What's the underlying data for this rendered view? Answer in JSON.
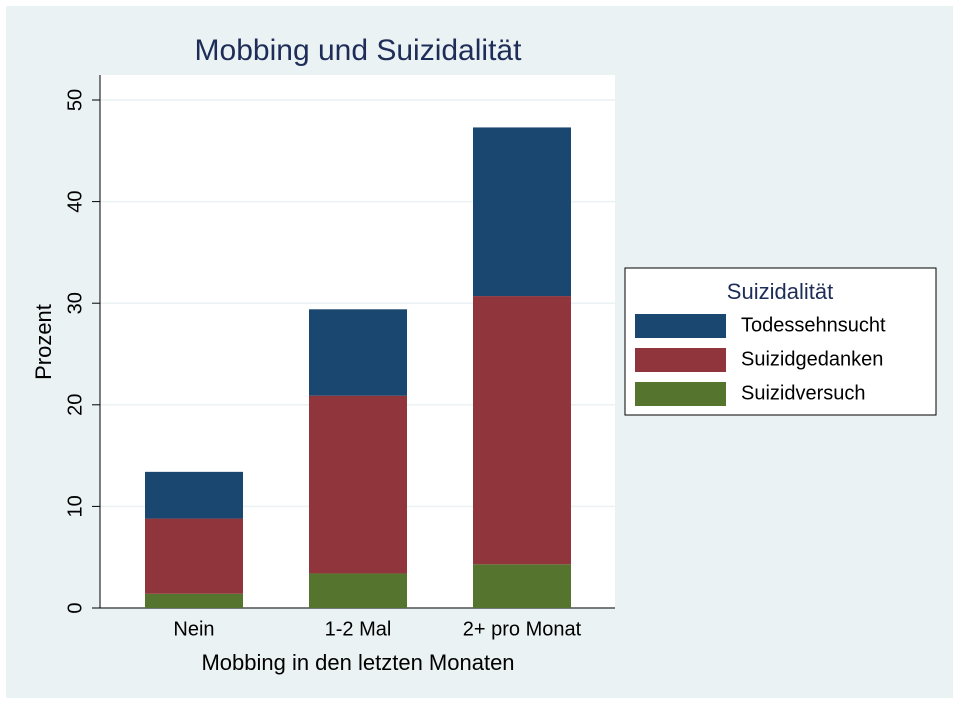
{
  "chart_data": {
    "type": "stacked_bar",
    "title": "Mobbing und Suizidalität",
    "xlabel": "Mobbing in den letzten Monaten",
    "ylabel": "Prozent",
    "categories": [
      "Nein",
      "1-2 Mal",
      "2+ pro Monat"
    ],
    "series": [
      {
        "name": "Todessehnsucht",
        "color": "#1a476f",
        "values": [
          4.6,
          8.5,
          16.6
        ]
      },
      {
        "name": "Suizidgedanken",
        "color": "#90353b",
        "values": [
          7.4,
          17.5,
          26.4
        ]
      },
      {
        "name": "Suizidversuch",
        "color": "#55752f",
        "values": [
          1.4,
          3.4,
          4.3
        ]
      }
    ],
    "legend_title": "Suizidalität",
    "legend_position": "right",
    "ylim": [
      0,
      50
    ],
    "yticks": [
      0,
      10,
      20,
      30,
      40,
      50
    ],
    "grid": true
  }
}
